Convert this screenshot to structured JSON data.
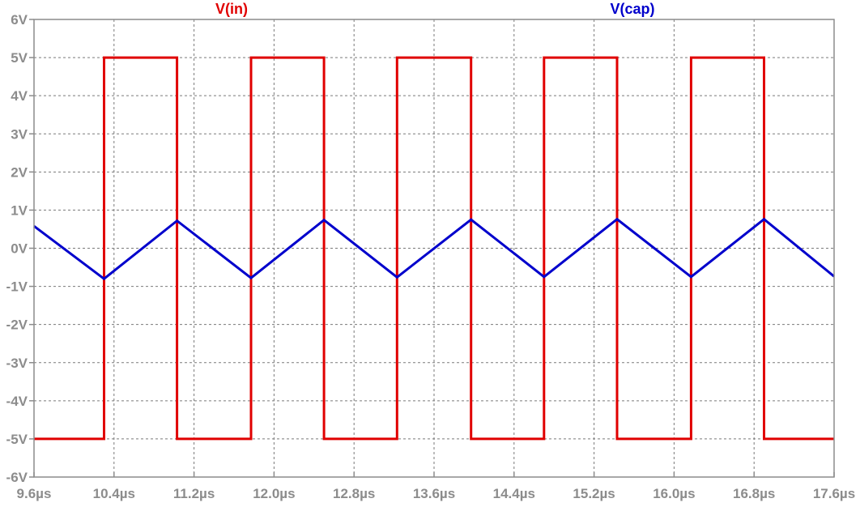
{
  "chart_data": {
    "type": "line",
    "xlabel": "",
    "ylabel": "",
    "xlim": [
      9.6,
      17.6
    ],
    "ylim": [
      -6,
      6
    ],
    "x_unit": "µs",
    "y_unit": "V",
    "x_ticks": [
      "9.6µs",
      "10.4µs",
      "11.2µs",
      "12.0µs",
      "12.8µs",
      "13.6µs",
      "14.4µs",
      "15.2µs",
      "16.0µs",
      "16.8µs",
      "17.6µs"
    ],
    "y_ticks": [
      "6V",
      "5V",
      "4V",
      "3V",
      "2V",
      "1V",
      "0V",
      "-1V",
      "-2V",
      "-3V",
      "-4V",
      "-5V",
      "-6V"
    ],
    "grid": true,
    "legend_placement": "top",
    "series": [
      {
        "name": "V(in)",
        "color": "#e00000",
        "x": [
          9.6,
          10.3,
          10.3,
          11.03,
          11.03,
          11.77,
          11.77,
          12.5,
          12.5,
          13.23,
          13.23,
          13.97,
          13.97,
          14.7,
          14.7,
          15.43,
          15.43,
          16.17,
          16.17,
          16.9,
          16.9,
          17.6
        ],
        "y": [
          -5,
          -5,
          5,
          5,
          -5,
          -5,
          5,
          5,
          -5,
          -5,
          5,
          5,
          -5,
          -5,
          5,
          5,
          -5,
          -5,
          5,
          5,
          -5,
          -5
        ]
      },
      {
        "name": "V(cap)",
        "color": "#0000cc",
        "x": [
          9.6,
          10.3,
          11.03,
          11.77,
          12.5,
          13.23,
          13.97,
          14.7,
          15.43,
          16.17,
          16.9,
          17.6
        ],
        "y": [
          0.58,
          -0.8,
          0.72,
          -0.78,
          0.74,
          -0.76,
          0.75,
          -0.75,
          0.76,
          -0.75,
          0.76,
          -0.74
        ]
      }
    ]
  }
}
